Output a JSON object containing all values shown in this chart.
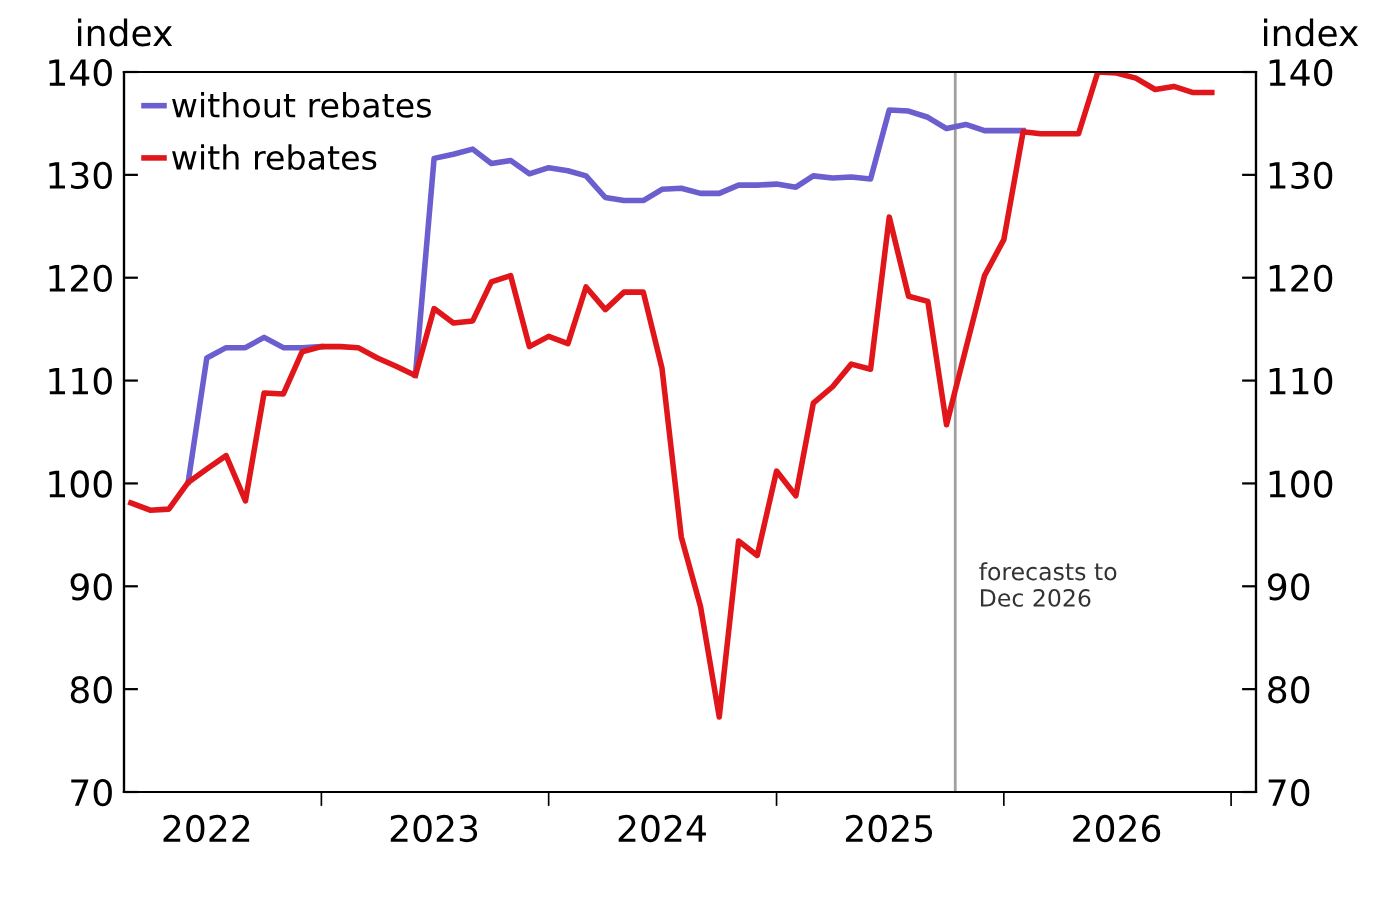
{
  "chart_data": {
    "type": "line",
    "ylabel": "index",
    "y2label": "index",
    "x": [
      "2022-03",
      "2022-04",
      "2022-05",
      "2022-06",
      "2022-07",
      "2022-08",
      "2022-09",
      "2022-10",
      "2022-11",
      "2022-12",
      "2023-01",
      "2023-02",
      "2023-03",
      "2023-04",
      "2023-05",
      "2023-06",
      "2023-07",
      "2023-08",
      "2023-09",
      "2023-10",
      "2023-11",
      "2023-12",
      "2024-01",
      "2024-02",
      "2024-03",
      "2024-04",
      "2024-05",
      "2024-06",
      "2024-07",
      "2024-08",
      "2024-09",
      "2024-10",
      "2024-11",
      "2024-12",
      "2025-01",
      "2025-02",
      "2025-03",
      "2025-04",
      "2025-05",
      "2025-06",
      "2025-07",
      "2025-08",
      "2025-09",
      "2025-10",
      "2025-11",
      "2025-12",
      "2026-01",
      "2026-02",
      "2026-03",
      "2026-04",
      "2026-05",
      "2026-06",
      "2026-07",
      "2026-08",
      "2026-09",
      "2026-10",
      "2026-11",
      "2026-12"
    ],
    "series": [
      {
        "name": "without rebates",
        "color": "#6b5fd0",
        "values": [
          null,
          null,
          null,
          100.1,
          112.2,
          113.2,
          113.2,
          114.2,
          113.2,
          113.2,
          113.3,
          null,
          null,
          null,
          null,
          110.5,
          131.6,
          132.0,
          132.5,
          131.1,
          131.4,
          130.1,
          130.7,
          130.4,
          129.9,
          127.8,
          127.5,
          127.5,
          128.6,
          128.7,
          128.2,
          128.2,
          129.0,
          129.0,
          129.1,
          128.8,
          129.9,
          129.7,
          129.8,
          129.6,
          136.3,
          136.2,
          135.6,
          134.5,
          134.9,
          134.3,
          134.3,
          134.3,
          null,
          null,
          null,
          null,
          null,
          null,
          null,
          null,
          null,
          null
        ]
      },
      {
        "name": "with rebates",
        "color": "#e0161b",
        "values": [
          98.1,
          97.4,
          97.5,
          100.1,
          101.4,
          102.7,
          98.3,
          108.8,
          108.7,
          112.8,
          113.3,
          113.3,
          113.2,
          112.2,
          111.4,
          110.5,
          117.0,
          115.6,
          115.8,
          119.6,
          120.2,
          113.3,
          114.3,
          113.6,
          119.1,
          116.9,
          118.6,
          118.6,
          111.2,
          94.8,
          88.0,
          77.3,
          94.4,
          93.0,
          101.2,
          98.8,
          107.8,
          109.4,
          111.6,
          111.1,
          125.9,
          118.2,
          117.7,
          105.7,
          113.1,
          120.2,
          123.7,
          134.2,
          134.0,
          134.0,
          134.0,
          140.0,
          139.9,
          139.4,
          138.3,
          138.6,
          138.0,
          138.0
        ]
      }
    ],
    "xlim": [
      "2022-02-18",
      "2027-02-10"
    ],
    "xticks": [
      {
        "value": "2022-07-01",
        "label": "2022"
      },
      {
        "value": "2023-01-01",
        "label": null
      },
      {
        "value": "2023-07-01",
        "label": "2023"
      },
      {
        "value": "2024-01-01",
        "label": null
      },
      {
        "value": "2024-07-01",
        "label": "2024"
      },
      {
        "value": "2025-01-01",
        "label": null
      },
      {
        "value": "2025-07-01",
        "label": "2025"
      },
      {
        "value": "2026-01-01",
        "label": null
      },
      {
        "value": "2026-07-01",
        "label": "2026"
      },
      {
        "value": "2027-01-01",
        "label": null
      }
    ],
    "ylim": [
      70,
      140
    ],
    "yticks": [
      70,
      80,
      90,
      100,
      110,
      120,
      130,
      140
    ],
    "y2lim": [
      70,
      140
    ],
    "y2ticks": [
      70,
      80,
      90,
      100,
      110,
      120,
      130,
      140
    ],
    "ref_lines": [
      {
        "axis": "x",
        "value": "2025-10-15",
        "color": "#a0a0a0"
      }
    ],
    "annotations": [
      "forecasts to\nDec 2026"
    ],
    "legend": "top left",
    "grid": false,
    "marker": "none",
    "line_style": "solid"
  }
}
